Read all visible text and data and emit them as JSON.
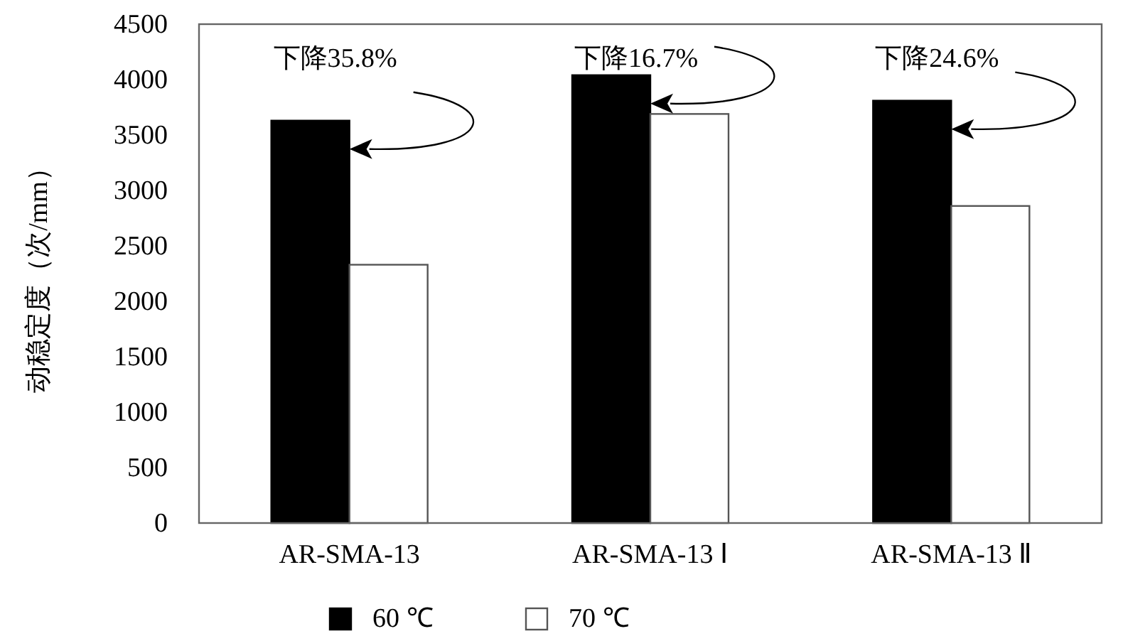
{
  "chart_data": {
    "type": "bar",
    "ylabel": "动稳定度（次/mm）",
    "categories": [
      "AR-SMA-13",
      "AR-SMA-13 Ⅰ",
      "AR-SMA-13 Ⅱ"
    ],
    "series": [
      {
        "name": "60 ℃",
        "color": "#000000",
        "values": [
          3630,
          4040,
          3810
        ]
      },
      {
        "name": "70 ℃",
        "color": "#ffffff",
        "values": [
          2330,
          3690,
          2860
        ]
      }
    ],
    "ylim": [
      0,
      4500
    ],
    "yticks": [
      0,
      500,
      1000,
      1500,
      2000,
      2500,
      3000,
      3500,
      4000,
      4500
    ],
    "annotations": [
      "下降35.8%",
      "下降16.7%",
      "下降24.6%"
    ],
    "grid": false,
    "legend": "bottom"
  }
}
